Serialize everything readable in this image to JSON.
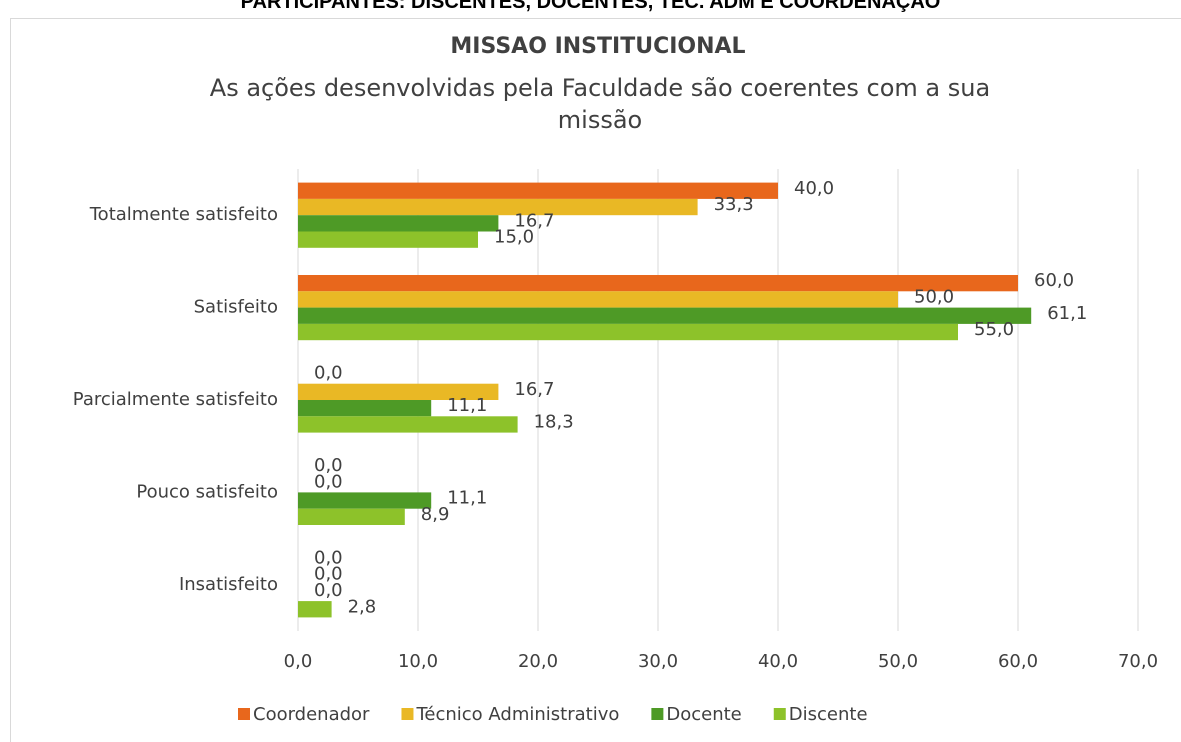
{
  "header": "PARTICIPANTES: DISCENTES, DOCENTES, TÉC. ADM E COORDENAÇÃO",
  "chart_data": {
    "type": "hbar",
    "title": "MISSAO INSTITUCIONAL",
    "subtitle": "As ações desenvolvidas pela Faculdade são coerentes com a sua missão",
    "categories": [
      "Totalmente satisfeito",
      "Satisfeito",
      "Parcialmente satisfeito",
      "Pouco satisfeito",
      "Insatisfeito"
    ],
    "series": [
      {
        "name": "Coordenador",
        "color": "#e8671c",
        "values": [
          40.0,
          60.0,
          0.0,
          0.0,
          0.0
        ],
        "value_labels": [
          "40,0",
          "60,0",
          "0,0",
          "0,0",
          "0,0"
        ]
      },
      {
        "name": "Técnico Administrativo",
        "color": "#e9b825",
        "values": [
          33.3,
          50.0,
          16.7,
          0.0,
          0.0
        ],
        "value_labels": [
          "33,3",
          "50,0",
          "16,7",
          "0,0",
          "0,0"
        ]
      },
      {
        "name": "Docente",
        "color": "#4e9a26",
        "values": [
          16.7,
          61.1,
          11.1,
          11.1,
          0.0
        ],
        "value_labels": [
          "16,7",
          "61,1",
          "11,1",
          "11,1",
          "0,0"
        ]
      },
      {
        "name": "Discente",
        "color": "#8dc22a",
        "values": [
          15.0,
          55.0,
          18.3,
          8.9,
          2.8
        ],
        "value_labels": [
          "15,0",
          "55,0",
          "18,3",
          "8,9",
          "2,8"
        ]
      }
    ],
    "xlim": [
      0,
      70
    ],
    "xticks": [
      {
        "value": 0,
        "label": "0,0"
      },
      {
        "value": 10,
        "label": "10,0"
      },
      {
        "value": 20,
        "label": "20,0"
      },
      {
        "value": 30,
        "label": "30,0"
      },
      {
        "value": 40,
        "label": "40,0"
      },
      {
        "value": 50,
        "label": "50,0"
      },
      {
        "value": 60,
        "label": "60,0"
      },
      {
        "value": 70,
        "label": "70,0"
      }
    ],
    "grid": true,
    "legend": "bottom"
  }
}
